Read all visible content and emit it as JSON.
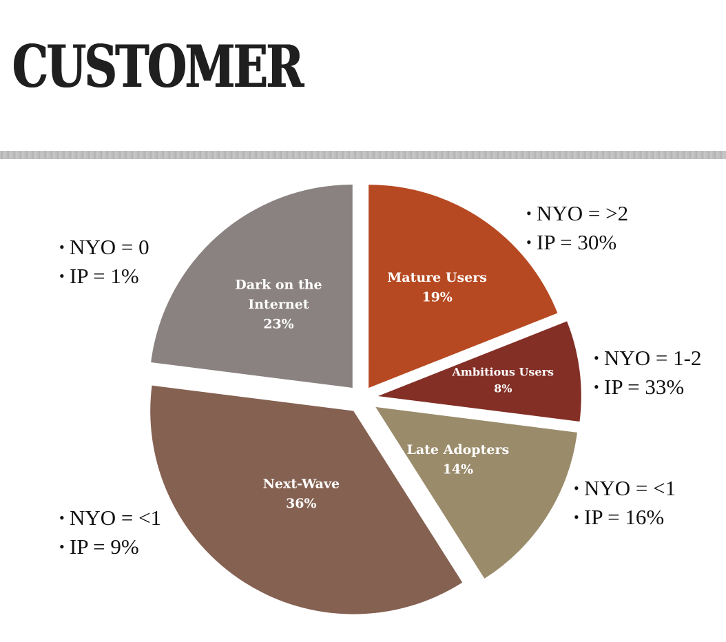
{
  "slide": {
    "title": "CUSTOMER"
  },
  "chart_data": {
    "type": "pie",
    "exploded": true,
    "start_angle_deg": 0,
    "direction": "clockwise",
    "slices": [
      {
        "key": "mature",
        "label_lines": [
          "Mature Users"
        ],
        "value": 19,
        "value_label": "19%",
        "color": "#b64921"
      },
      {
        "key": "ambit",
        "label_lines": [
          "Ambitious Users"
        ],
        "value": 8,
        "value_label": "8%",
        "color": "#832f26"
      },
      {
        "key": "late",
        "label_lines": [
          "Late Adopters"
        ],
        "value": 14,
        "value_label": "14%",
        "color": "#9a8b6b"
      },
      {
        "key": "next",
        "label_lines": [
          "Next-Wave"
        ],
        "value": 36,
        "value_label": "36%",
        "color": "#856152"
      },
      {
        "key": "dark",
        "label_lines": [
          "Dark on the",
          "Internet"
        ],
        "value": 23,
        "value_label": "23%",
        "color": "#8a8280"
      }
    ]
  },
  "notes": {
    "dark": {
      "nyo": "NYO = 0",
      "ip": "IP = 1%"
    },
    "mature": {
      "nyo": "NYO = >2",
      "ip": "IP = 30%"
    },
    "ambit": {
      "nyo": "NYO = 1-2",
      "ip": "IP = 33%"
    },
    "late": {
      "nyo": "NYO = <1",
      "ip": "IP = 16%"
    },
    "next": {
      "nyo": "NYO = <1",
      "ip": "IP = 9%"
    }
  }
}
